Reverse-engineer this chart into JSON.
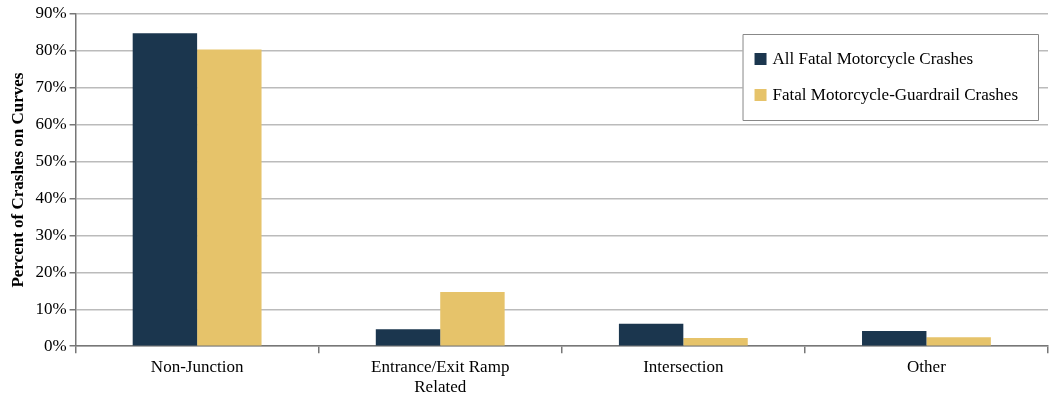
{
  "chart_data": {
    "type": "bar",
    "ylabel": "Percent of Crashes on Curves",
    "categories": [
      "Non-Junction",
      "Entrance/Exit Ramp Related",
      "Intersection",
      "Other"
    ],
    "series": [
      {
        "name": "All Fatal Motorcycle Crashes",
        "color": "#1b364e",
        "values": [
          84.8,
          4.6,
          6.1,
          4.1
        ]
      },
      {
        "name": "Fatal Motorcycle-Guardrail Crashes",
        "color": "#e6c36a",
        "values": [
          80.4,
          14.7,
          2.2,
          2.4
        ]
      }
    ],
    "ylim": [
      0,
      90
    ],
    "yticks": [
      {
        "value": 0,
        "label": "0%"
      },
      {
        "value": 10,
        "label": "10%"
      },
      {
        "value": 20,
        "label": "20%"
      },
      {
        "value": 30,
        "label": "30%"
      },
      {
        "value": 40,
        "label": "40%"
      },
      {
        "value": 50,
        "label": "50%"
      },
      {
        "value": 60,
        "label": "60%"
      },
      {
        "value": 70,
        "label": "70%"
      },
      {
        "value": 80,
        "label": "80%"
      },
      {
        "value": 90,
        "label": "90%"
      }
    ],
    "grid": "y",
    "legend": "top right"
  }
}
